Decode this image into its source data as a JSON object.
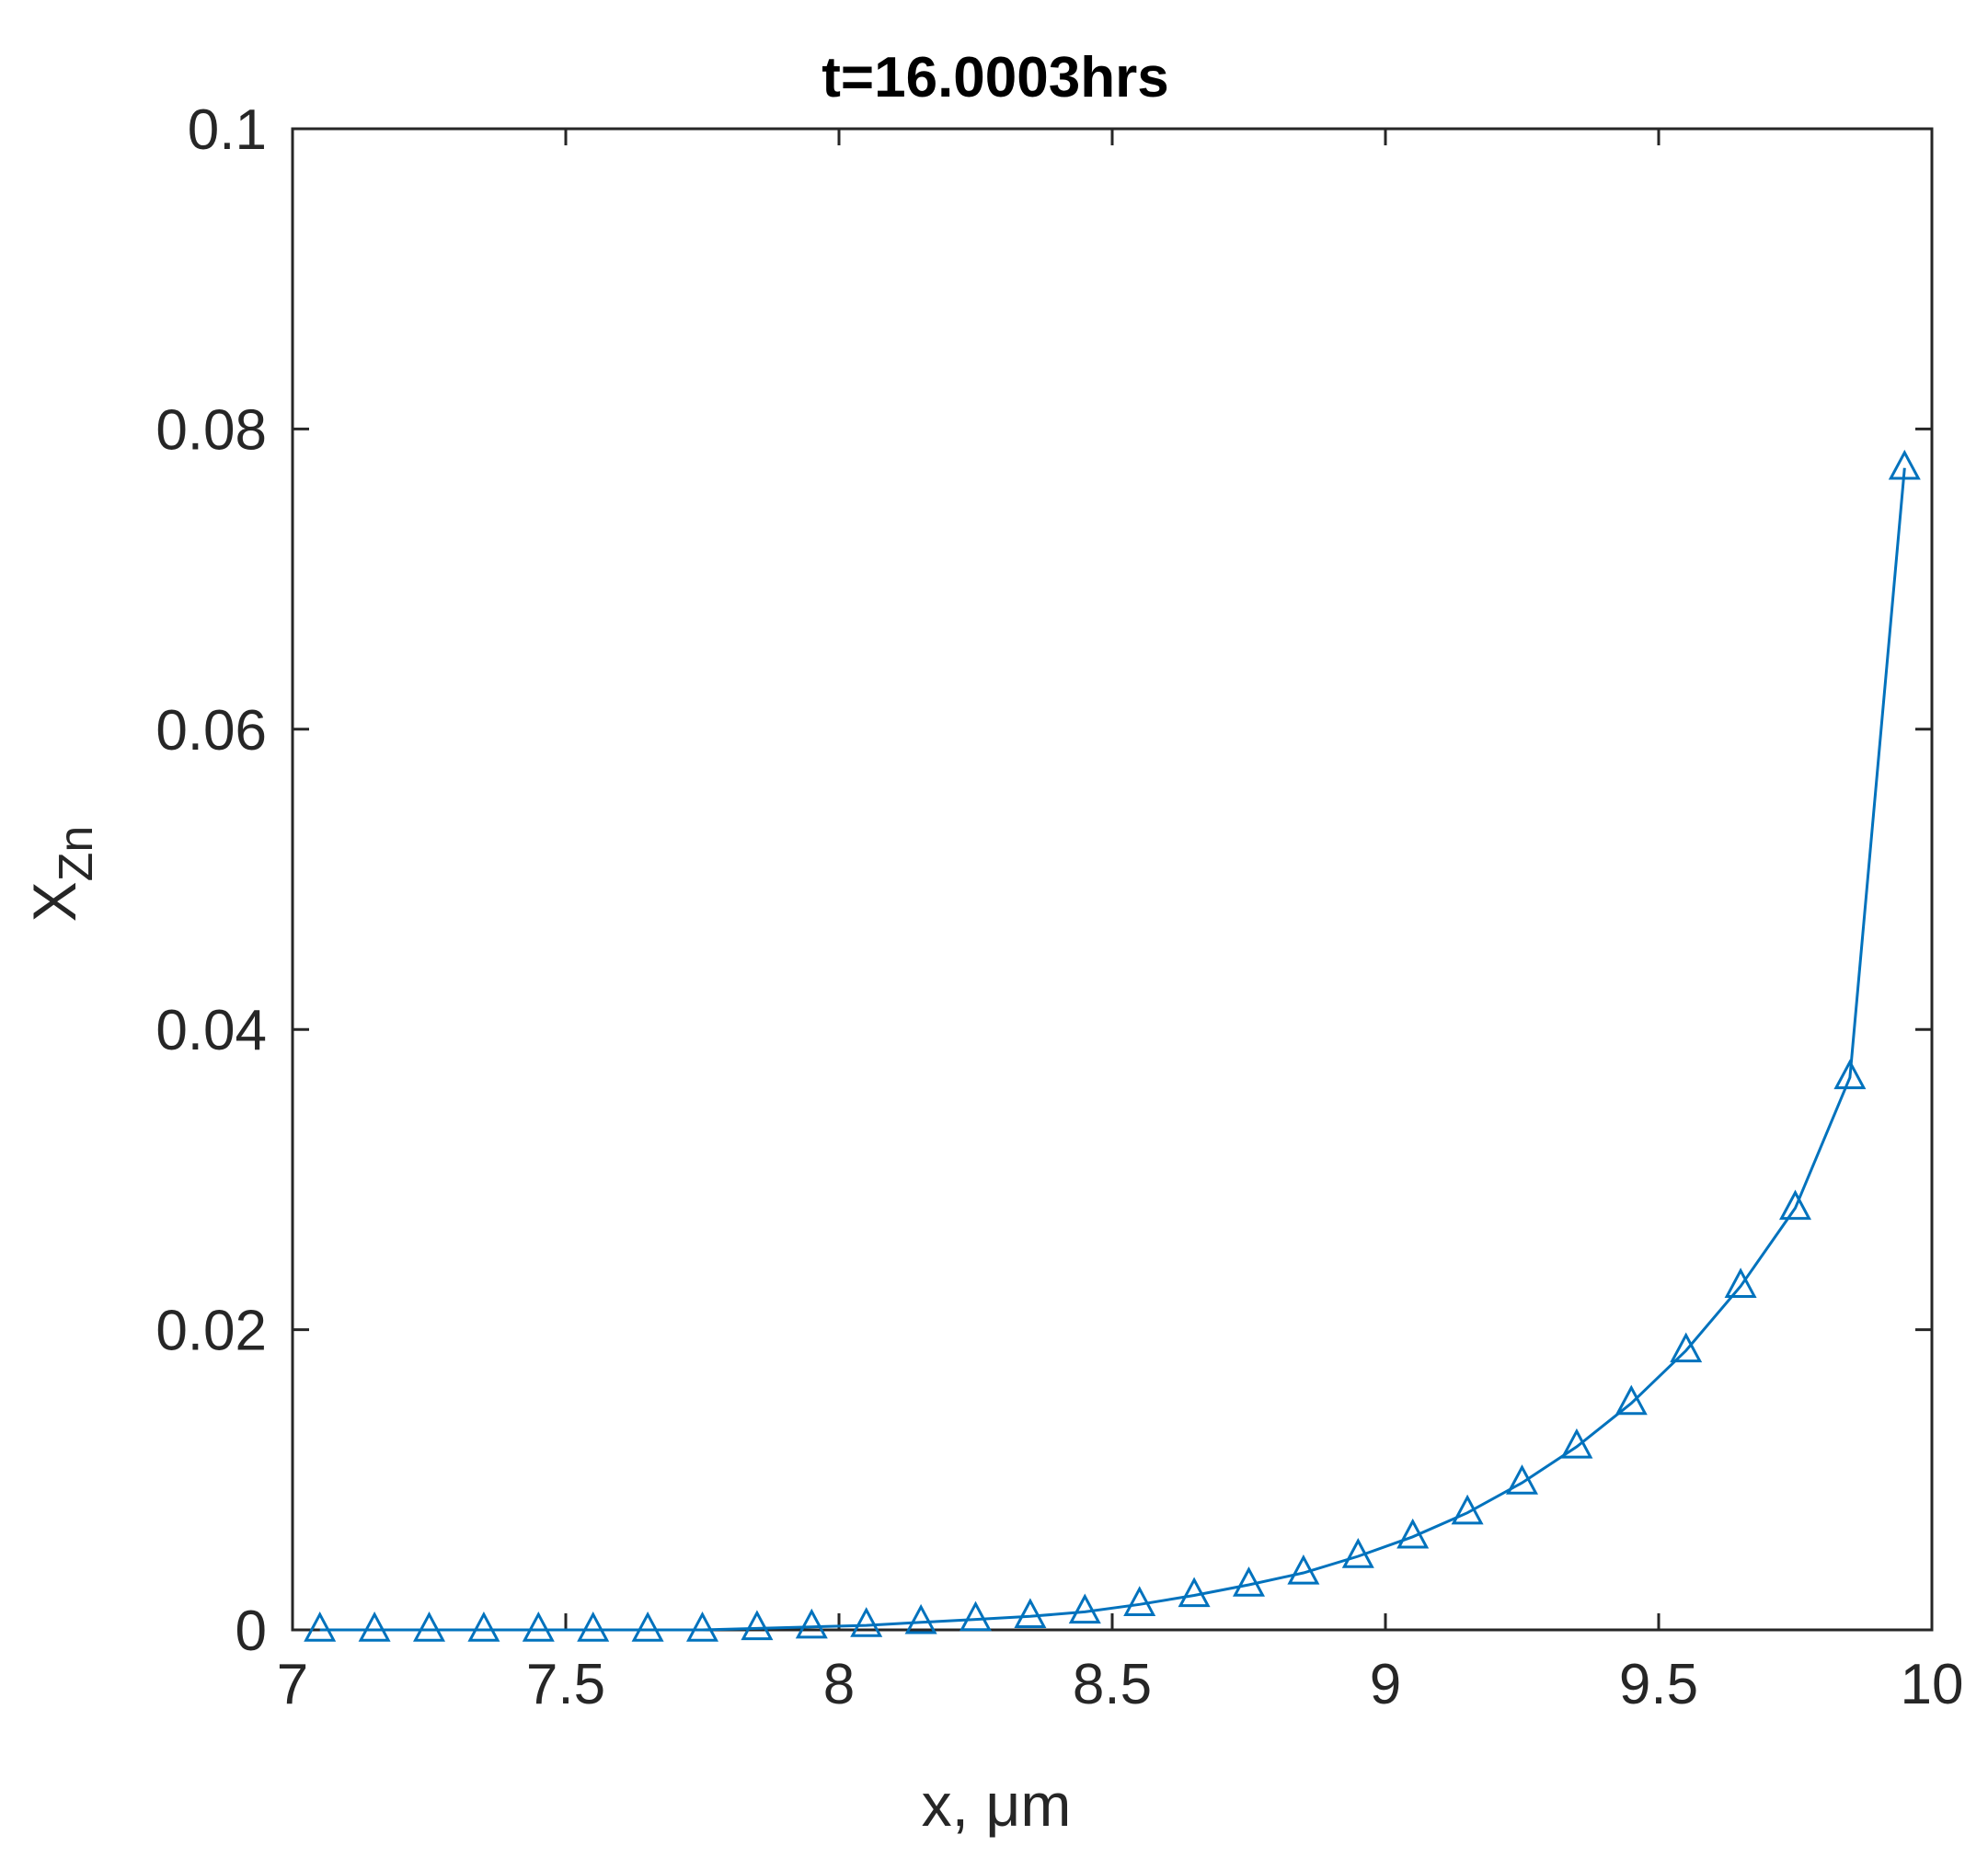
{
  "chart_data": {
    "type": "line",
    "title": "t=16.0003hrs",
    "xlabel": "x, μm",
    "ylabel": {
      "main": "X",
      "subscript": "Zn"
    },
    "xlim": [
      7,
      10
    ],
    "ylim": [
      0,
      0.1
    ],
    "xticks": [
      7,
      7.5,
      8,
      8.5,
      9,
      9.5,
      10
    ],
    "yticks": [
      0,
      0.02,
      0.04,
      0.06,
      0.08,
      0.1
    ],
    "xtick_labels": [
      "7",
      "7.5",
      "8",
      "8.5",
      "9",
      "9.5",
      "10"
    ],
    "ytick_labels": [
      "0",
      "0.02",
      "0.04",
      "0.06",
      "0.08",
      "0.1"
    ],
    "grid": false,
    "legend": "none",
    "series": [
      {
        "marker": "triangle",
        "color": "#0072BD",
        "x": [
          7.05,
          7.15,
          7.25,
          7.35,
          7.45,
          7.55,
          7.65,
          7.75,
          7.85,
          7.95,
          8.05,
          8.15,
          8.25,
          8.35,
          8.45,
          8.55,
          8.65,
          8.75,
          8.85,
          8.95,
          9.05,
          9.15,
          9.25,
          9.35,
          9.45,
          9.55,
          9.65,
          9.75,
          9.85,
          9.95
        ],
        "y": [
          0.0,
          0.0,
          0.0,
          0.0,
          0.0,
          0.0,
          0.0,
          0.0,
          0.0001,
          0.0002,
          0.0003,
          0.0005,
          0.0007,
          0.0009,
          0.0012,
          0.0017,
          0.0023,
          0.003,
          0.0038,
          0.0049,
          0.0062,
          0.0078,
          0.0098,
          0.0122,
          0.0151,
          0.0186,
          0.0229,
          0.0281,
          0.0368,
          0.0774
        ]
      }
    ]
  }
}
